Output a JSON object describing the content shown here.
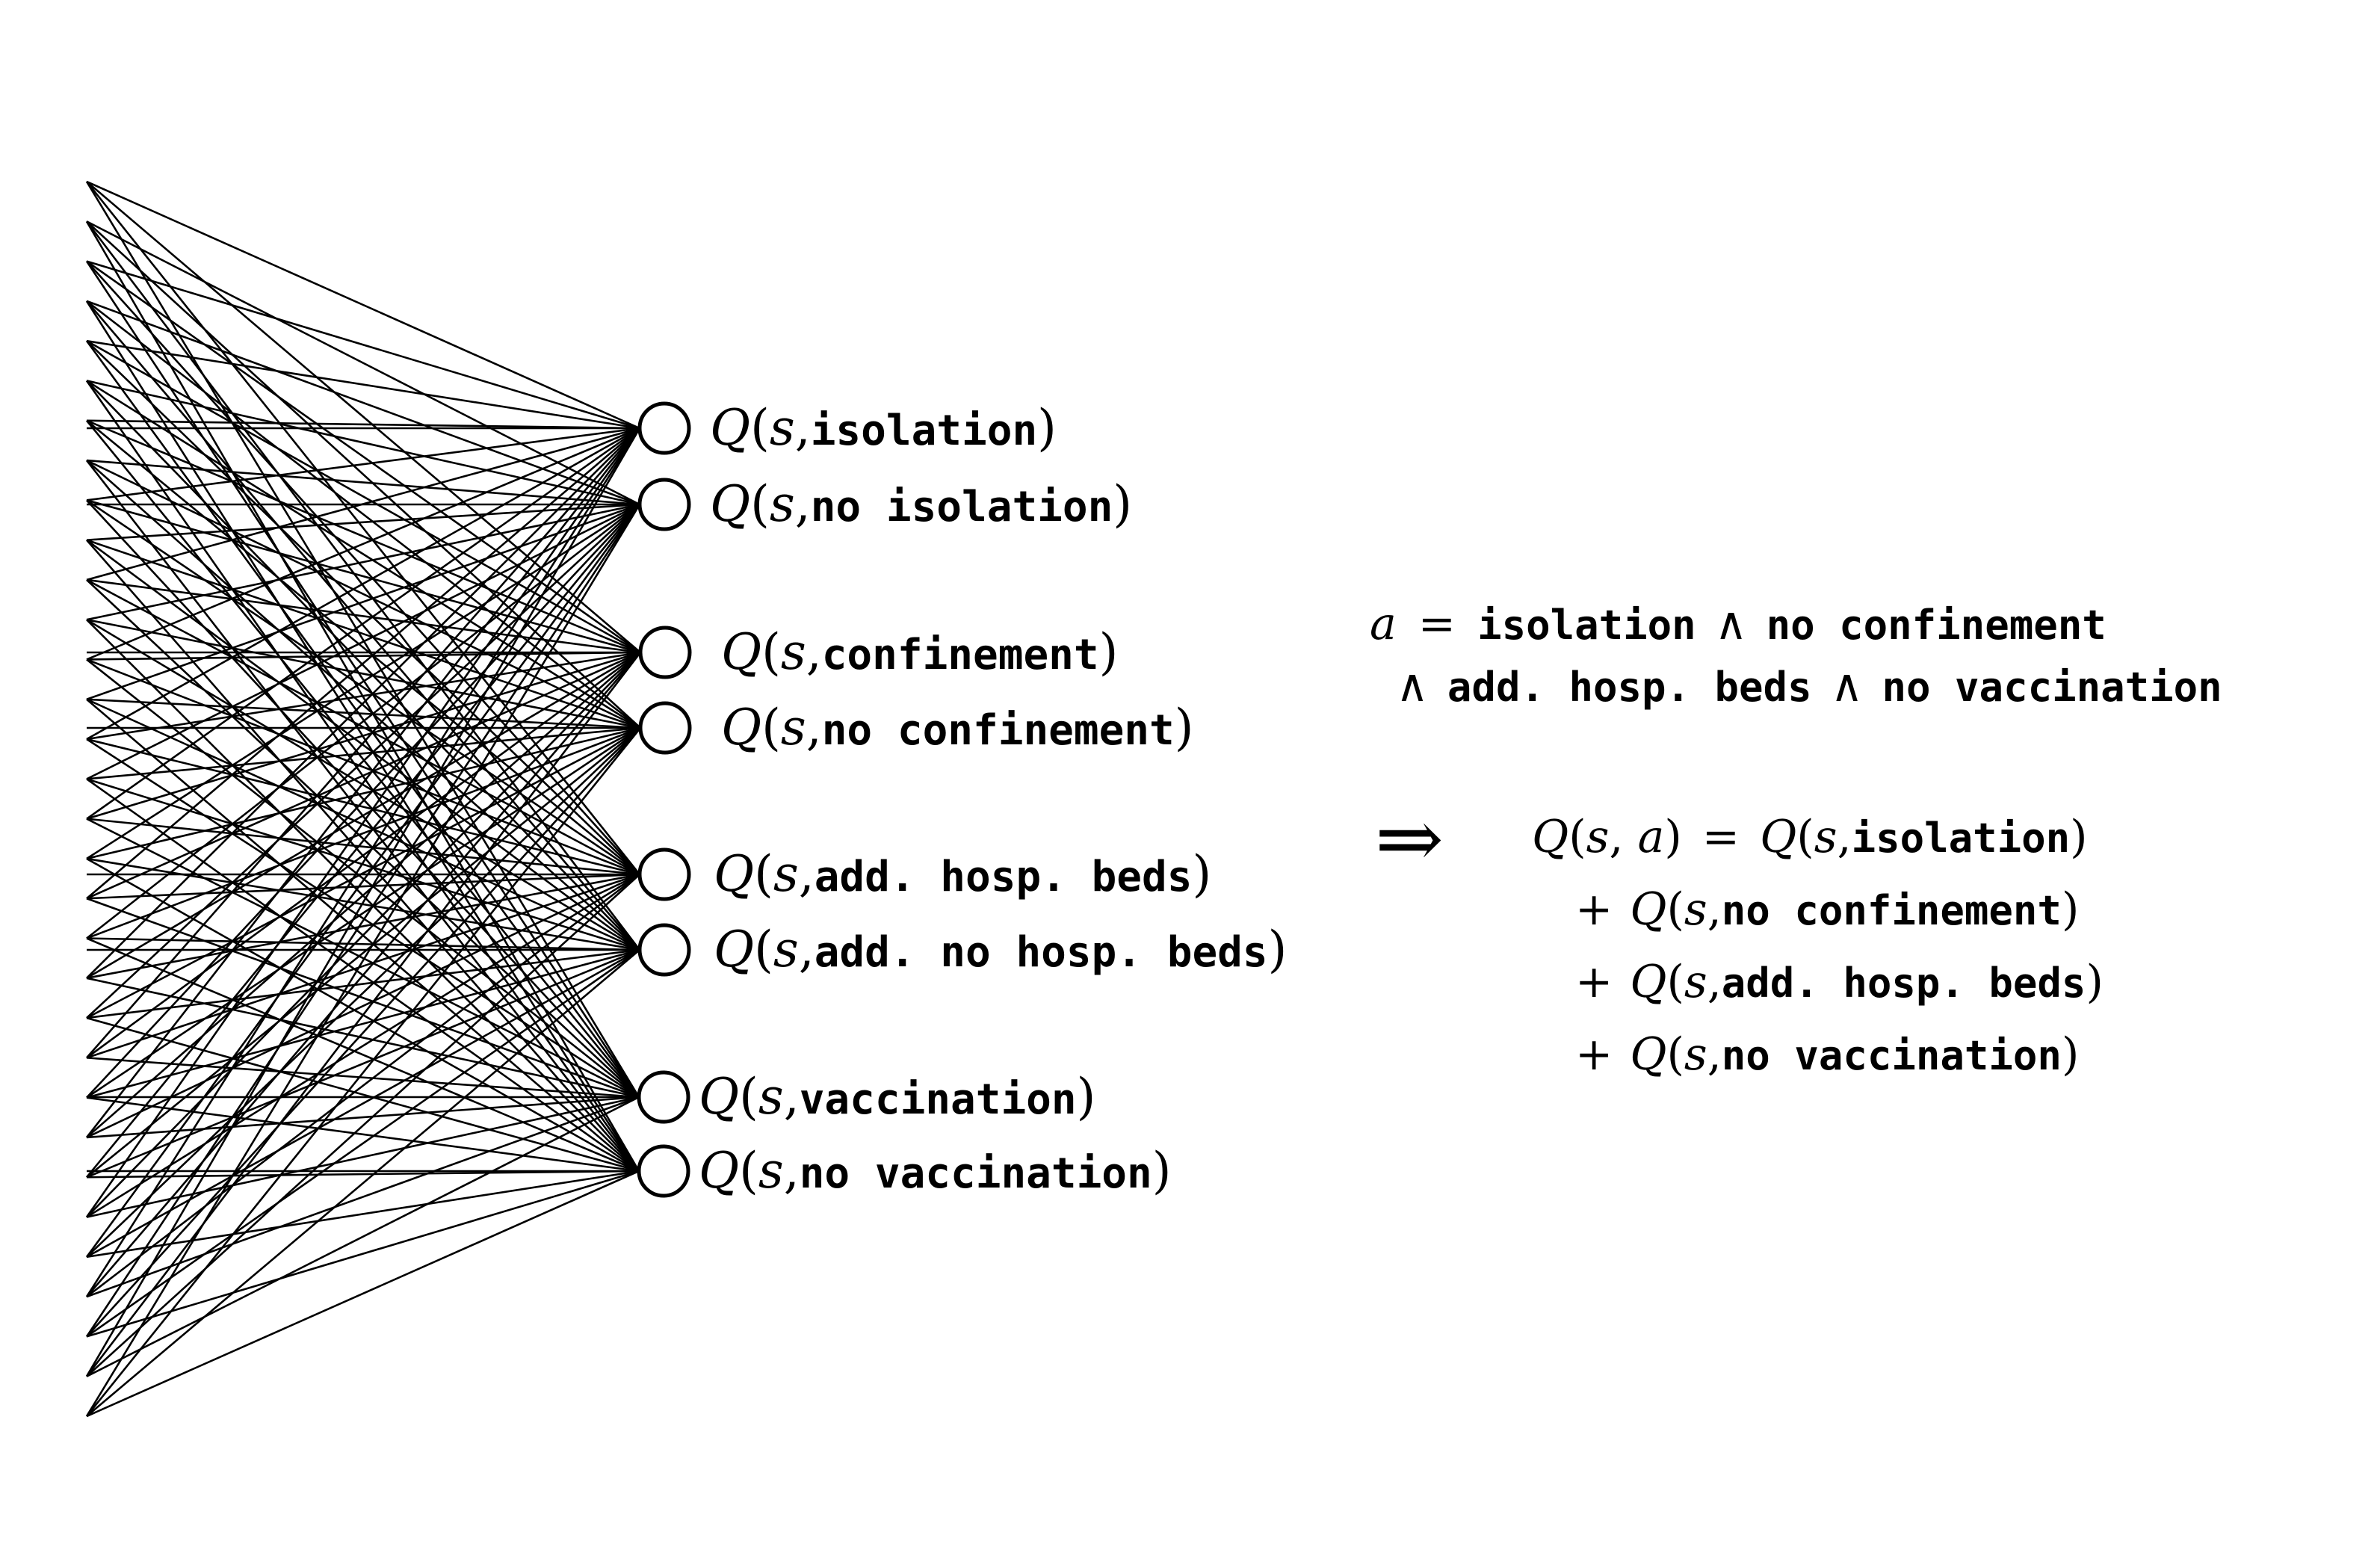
{
  "outputs": [
    {
      "id": "isolation",
      "sym": "Q",
      "open": "(",
      "state": "s",
      "sep": ",",
      "action": "isolation",
      "close": ")"
    },
    {
      "id": "no-isolation",
      "sym": "Q",
      "open": "(",
      "state": "s",
      "sep": ",",
      "action": "no isolation",
      "close": ")"
    },
    {
      "id": "confinement",
      "sym": "Q",
      "open": "(",
      "state": "s",
      "sep": ",",
      "action": "confinement",
      "close": ")"
    },
    {
      "id": "no-confinement",
      "sym": "Q",
      "open": "(",
      "state": "s",
      "sep": ",",
      "action": "no confinement",
      "close": ")"
    },
    {
      "id": "add-hosp-beds",
      "sym": "Q",
      "open": "(",
      "state": "s",
      "sep": ",",
      "action": "add. hosp. beds",
      "close": ")"
    },
    {
      "id": "add-no-hosp-beds",
      "sym": "Q",
      "open": "(",
      "state": "s",
      "sep": ",",
      "action": "add. no hosp. beds",
      "close": ")"
    },
    {
      "id": "vaccination",
      "sym": "Q",
      "open": "(",
      "state": "s",
      "sep": ",",
      "action": "vaccination",
      "close": ")"
    },
    {
      "id": "no-vaccination",
      "sym": "Q",
      "open": "(",
      "state": "s",
      "sep": ",",
      "action": "no vaccination",
      "close": ")"
    }
  ],
  "action_def": {
    "lhs": "a",
    "eq": "=",
    "and": "∧",
    "line1": [
      "isolation",
      "no confinement"
    ],
    "line2": [
      "add. hosp. beds",
      "no vaccination"
    ]
  },
  "implies": "⇒",
  "sum": {
    "lhs_sym": "Q",
    "lhs_state": "s",
    "lhs_action": "a",
    "eq": "=",
    "plus": "+",
    "terms": [
      "isolation",
      "no confinement",
      "add. hosp. beds",
      "no vaccination"
    ]
  }
}
